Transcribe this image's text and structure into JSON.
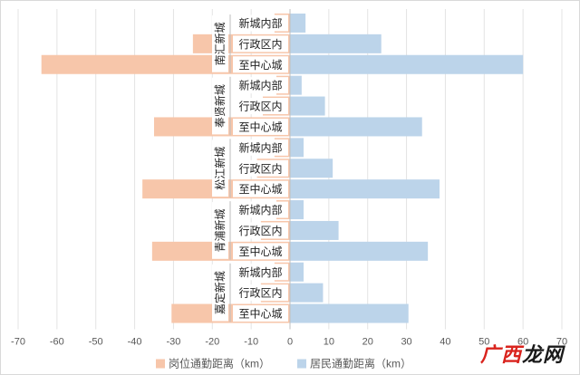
{
  "chart_data": {
    "type": "bar",
    "orientation": "horizontal",
    "title": "",
    "xlabel": "",
    "ylabel": "",
    "xlim": [
      -70,
      70
    ],
    "xticks": [
      -70,
      -60,
      -50,
      -40,
      -30,
      -20,
      -10,
      0,
      10,
      20,
      30,
      40,
      50,
      60,
      70
    ],
    "grid": true,
    "legend_position": "bottom",
    "groups": [
      {
        "name": "南汇新城",
        "categories": [
          "新城内部",
          "行政区内",
          "至中心城"
        ]
      },
      {
        "name": "奉贤新城",
        "categories": [
          "新城内部",
          "行政区内",
          "至中心城"
        ]
      },
      {
        "name": "松江新城",
        "categories": [
          "新城内部",
          "行政区内",
          "至中心城"
        ]
      },
      {
        "name": "青浦新城",
        "categories": [
          "新城内部",
          "行政区内",
          "至中心城"
        ]
      },
      {
        "name": "嘉定新城",
        "categories": [
          "新城内部",
          "行政区内",
          "至中心城"
        ]
      }
    ],
    "series": [
      {
        "name": "岗位通勤距离（km）",
        "color": "#f7c6aa",
        "values": [
          -4,
          -25,
          -64,
          -3.5,
          -7,
          -35,
          -4,
          -8.5,
          -38,
          -3.5,
          -7.5,
          -35.5,
          -4,
          -7.5,
          -30.5
        ]
      },
      {
        "name": "居民通勤距离（km）",
        "color": "#bcd4ea",
        "values": [
          4,
          23.5,
          60,
          3,
          9,
          34,
          3.5,
          11,
          38.5,
          3.5,
          12.5,
          35.5,
          3.5,
          8.5,
          30.5
        ]
      }
    ]
  },
  "watermark": {
    "part1": "广西",
    "part2": "龙网"
  }
}
